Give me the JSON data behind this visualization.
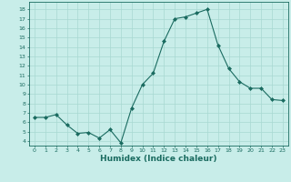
{
  "x": [
    0,
    1,
    2,
    3,
    4,
    5,
    6,
    7,
    8,
    9,
    10,
    11,
    12,
    13,
    14,
    15,
    16,
    17,
    18,
    19,
    20,
    21,
    22,
    23
  ],
  "y": [
    6.5,
    6.5,
    6.8,
    5.7,
    4.8,
    4.9,
    4.3,
    5.2,
    3.8,
    7.5,
    10.0,
    11.2,
    14.6,
    17.0,
    17.2,
    17.6,
    18.0,
    14.2,
    11.7,
    10.3,
    9.6,
    9.6,
    8.4,
    8.3
  ],
  "bg_color": "#c8ede9",
  "line_color": "#1a6b60",
  "marker_color": "#1a6b60",
  "grid_color": "#a8d8d2",
  "xlabel": "Humidex (Indice chaleur)",
  "yticks": [
    4,
    5,
    6,
    7,
    8,
    9,
    10,
    11,
    12,
    13,
    14,
    15,
    16,
    17,
    18
  ],
  "ylim": [
    3.5,
    18.8
  ],
  "xlim": [
    -0.5,
    23.5
  ],
  "xticks": [
    0,
    1,
    2,
    3,
    4,
    5,
    6,
    7,
    8,
    9,
    10,
    11,
    12,
    13,
    14,
    15,
    16,
    17,
    18,
    19,
    20,
    21,
    22,
    23
  ]
}
